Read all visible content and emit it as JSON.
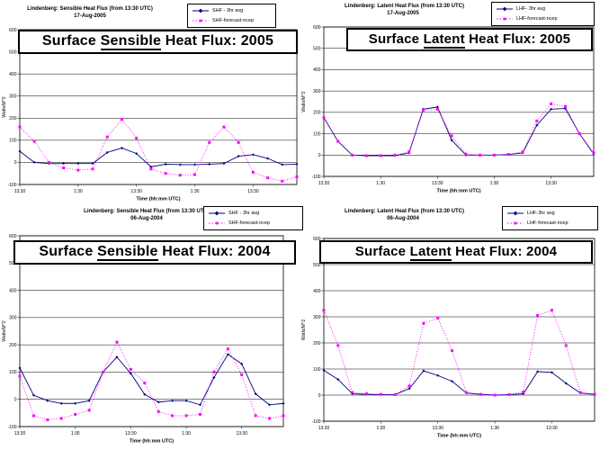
{
  "page": {
    "background": "#ffffff"
  },
  "colors": {
    "series_blue": "#000080",
    "series_magenta": "#ff00ff",
    "grid": "#000000"
  },
  "chart_data": [
    {
      "type": "line",
      "panel": "top-left",
      "header_line1": "Lindenberg: Sensible Heat Flux (from 13:30 UTC)",
      "header_line2": "17-Aug-2005",
      "title_pre": "Surface ",
      "title_underline": "Sensible",
      "title_post": " Heat Flux: 2005",
      "xlabel": "Time (hh:mm UTC)",
      "ylabel": "Watts/M^2",
      "ylim": [
        -100,
        600
      ],
      "y_ticks": [
        600,
        500,
        400,
        300,
        200,
        100,
        0,
        -100
      ],
      "x_tick_labels": [
        "13:30",
        "1:30",
        "13:30",
        "1:30",
        "13:30"
      ],
      "x_tick_indices": [
        0,
        4,
        8,
        12,
        16
      ],
      "grid": true,
      "legend_position": "top-right",
      "series": [
        {
          "name": "SHF - 3hr avg",
          "color": "#000080",
          "style": "solid",
          "marker": "diamond",
          "values": [
            50,
            0,
            -5,
            -5,
            -5,
            -5,
            45,
            65,
            40,
            -20,
            -8,
            -10,
            -10,
            -8,
            -5,
            28,
            35,
            18,
            -10,
            -8
          ]
        },
        {
          "name": "SHF-forecast-ncep",
          "color": "#ff00ff",
          "style": "dotted",
          "marker": "square",
          "values": [
            160,
            95,
            0,
            -25,
            -35,
            -30,
            115,
            195,
            110,
            -30,
            -50,
            -58,
            -55,
            90,
            160,
            90,
            -45,
            -70,
            -85,
            -65
          ]
        }
      ]
    },
    {
      "type": "line",
      "panel": "top-right",
      "header_line1": "Lindenberg: Latent Heat Flux (from 13:30 UTC)",
      "header_line2": "17-Aug-2005",
      "title_pre": "Surface ",
      "title_underline": "Latent",
      "title_post": " Heat Flux: 2005",
      "xlabel": "Time (hh:mm UTC)",
      "ylabel": "Watts/M^2",
      "ylim": [
        -100,
        600
      ],
      "y_ticks": [
        600,
        500,
        400,
        300,
        200,
        100,
        0,
        -100
      ],
      "x_tick_labels": [
        "13:30",
        "1:30",
        "13:30",
        "1:30",
        "13:30"
      ],
      "x_tick_indices": [
        0,
        4,
        8,
        12,
        16
      ],
      "grid": true,
      "legend_position": "top-right",
      "series": [
        {
          "name": "LHF- 3hr avg",
          "color": "#000080",
          "style": "solid",
          "marker": "diamond",
          "values": [
            175,
            64,
            0,
            -3,
            -3,
            -3,
            10,
            215,
            225,
            70,
            0,
            0,
            0,
            3,
            10,
            140,
            215,
            218,
            100,
            5
          ]
        },
        {
          "name": "LHF-forecast-ncep",
          "color": "#ff00ff",
          "style": "dotted",
          "marker": "square",
          "values": [
            175,
            64,
            0,
            -3,
            -3,
            0,
            15,
            210,
            215,
            90,
            5,
            0,
            0,
            3,
            15,
            160,
            240,
            228,
            100,
            10
          ]
        }
      ]
    },
    {
      "type": "line",
      "panel": "bottom-left",
      "header_line1": "Lindenberg: Sensible Heat Flux (from 13:30 UTC)",
      "header_line2": "06-Aug-2004",
      "title_pre": "Surface ",
      "title_underline": "Sensible",
      "title_post": " Heat Flux: 2004",
      "xlabel": "Time (hh:mm UTC)",
      "ylabel": "Watts/M^2",
      "ylim": [
        -100,
        600
      ],
      "y_ticks": [
        600,
        500,
        400,
        300,
        200,
        100,
        0,
        -100
      ],
      "x_tick_labels": [
        "13:30",
        "1:30",
        "13:30",
        "1:30",
        "13:30"
      ],
      "x_tick_indices": [
        0,
        4,
        8,
        12,
        16
      ],
      "grid": true,
      "legend_position": "top-right",
      "series": [
        {
          "name": "SHF - 3hr avg",
          "color": "#000080",
          "style": "solid",
          "marker": "diamond",
          "values": [
            115,
            15,
            -5,
            -15,
            -15,
            -5,
            100,
            155,
            95,
            18,
            -10,
            -5,
            -5,
            -20,
            80,
            165,
            130,
            20,
            -20,
            -15
          ]
        },
        {
          "name": "SHF-forecast-ncep",
          "color": "#ff00ff",
          "style": "dotted",
          "marker": "square",
          "values": [
            85,
            -60,
            -75,
            -70,
            -55,
            -40,
            100,
            210,
            110,
            60,
            -45,
            -60,
            -60,
            -55,
            100,
            185,
            90,
            -60,
            -70,
            -60
          ]
        }
      ]
    },
    {
      "type": "line",
      "panel": "bottom-right",
      "header_line1": "Lindenberg: Latent Heat Flux (from 13:30 UTC)",
      "header_line2": "06-Aug-2004",
      "title_pre": "Surface ",
      "title_underline": "Latent",
      "title_post": " Heat Flux: 2004",
      "xlabel": "Time (hh:mm UTC)",
      "ylabel": "Watts/M^2",
      "ylim": [
        -100,
        600
      ],
      "y_ticks": [
        600,
        500,
        400,
        300,
        200,
        100,
        0,
        -100
      ],
      "x_tick_labels": [
        "13:30",
        "1:30",
        "13:30",
        "1:30",
        "13:30"
      ],
      "x_tick_indices": [
        0,
        4,
        8,
        12,
        16
      ],
      "grid": true,
      "legend_position": "top-right",
      "series": [
        {
          "name": "LHF-3hr avg",
          "color": "#000080",
          "style": "solid",
          "marker": "diamond",
          "values": [
            95,
            60,
            5,
            3,
            2,
            2,
            25,
            93,
            75,
            53,
            8,
            3,
            0,
            2,
            5,
            90,
            87,
            45,
            8,
            3
          ]
        },
        {
          "name": "LHF-forecast-ncep",
          "color": "#ff00ff",
          "style": "dotted",
          "marker": "square",
          "values": [
            325,
            190,
            10,
            5,
            3,
            2,
            35,
            275,
            295,
            170,
            10,
            3,
            0,
            2,
            12,
            305,
            325,
            190,
            10,
            3
          ]
        }
      ]
    }
  ]
}
